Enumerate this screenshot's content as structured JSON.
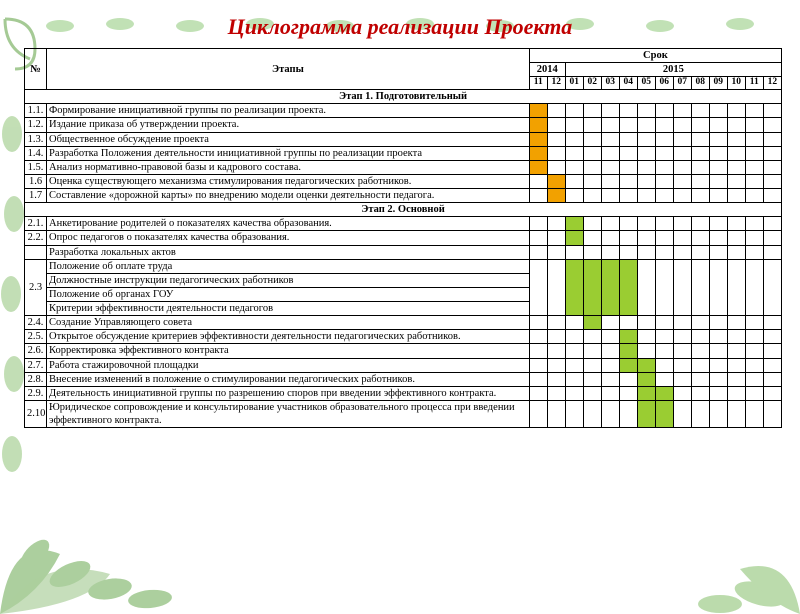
{
  "title": "Циклограмма реализации Проекта",
  "title_color": "#c00000",
  "title_fontsize": 22,
  "colors": {
    "orange": "#f2a100",
    "green": "#9acd32",
    "border": "#000000"
  },
  "decor": {
    "corner_swirl_color": "#6aa84f",
    "leaves_color": "#7ab85c",
    "top_border_leaf_color": "#8fc97a"
  },
  "header": {
    "num": "№",
    "task": "Этапы",
    "period": "Срок",
    "years": [
      "2014",
      "2015"
    ],
    "months": [
      "11",
      "12",
      "01",
      "02",
      "03",
      "04",
      "05",
      "06",
      "07",
      "08",
      "09",
      "10",
      "11",
      "12"
    ]
  },
  "sections": [
    {
      "title": "Этап 1. Подготовительный",
      "rows": [
        {
          "num": "1.1.",
          "task": "Формирование инициативной группы по реализации проекта.",
          "fill": {
            "color": "orange",
            "cells": [
              0
            ]
          }
        },
        {
          "num": "1.2.",
          "task": "Издание приказа об утверждении проекта.",
          "fill": {
            "color": "orange",
            "cells": [
              0
            ]
          }
        },
        {
          "num": "1.3.",
          "task": "Общественное обсуждение проекта",
          "fill": {
            "color": "orange",
            "cells": [
              0
            ]
          }
        },
        {
          "num": "1.4.",
          "task": "Разработка Положения деятельности инициативной группы по реализации проекта",
          "fill": {
            "color": "orange",
            "cells": [
              0
            ]
          }
        },
        {
          "num": "1.5.",
          "task": "Анализ нормативно-правовой базы и кадрового состава.",
          "fill": {
            "color": "orange",
            "cells": [
              0
            ]
          }
        },
        {
          "num": "1.6",
          "task": "Оценка существующего механизма стимулирования педагогических работников.",
          "fill": {
            "color": "orange",
            "cells": [
              1
            ]
          }
        },
        {
          "num": "1.7",
          "task": "Составление «дорожной карты» по внедрению модели оценки деятельности педагога.",
          "fill": {
            "color": "orange",
            "cells": [
              1
            ]
          }
        }
      ]
    },
    {
      "title": "Этап 2. Основной",
      "rows": [
        {
          "num": "2.1.",
          "task": "Анкетирование родителей о показателях качества образования.",
          "fill": {
            "color": "green",
            "cells": [
              2
            ]
          }
        },
        {
          "num": "2.2.",
          "task": "Опрос педагогов о показателях качества образования.",
          "fill": {
            "color": "green",
            "cells": [
              2
            ]
          }
        },
        {
          "num": "",
          "task": "Разработка локальных актов",
          "fill": null
        },
        {
          "num": "2.3",
          "task": "Положение об оплате труда\nДолжностные инструкции педагогических работников\nПоложение об органах ГОУ\nКритерии эффективности деятельности педагогов",
          "fill": {
            "color": "green",
            "cells": [
              2,
              3,
              4,
              5
            ]
          },
          "cell_rowspan": 4
        },
        {
          "num": "2.4.",
          "task": "Создание Управляющего совета",
          "fill": {
            "color": "green",
            "cells": [
              3
            ]
          }
        },
        {
          "num": "2.5.",
          "task": "Открытое обсуждение критериев эффективности деятельности педагогических работников.",
          "fill": {
            "color": "green",
            "cells": [
              5
            ]
          }
        },
        {
          "num": "2.6.",
          "task": "Корректировка эффективного контракта",
          "fill": {
            "color": "green",
            "cells": [
              5
            ]
          }
        },
        {
          "num": "2.7.",
          "task": "Работа стажировочной площадки",
          "fill": {
            "color": "green",
            "cells": [
              5,
              6
            ]
          }
        },
        {
          "num": "2.8.",
          "task": "Внесение изменений в положение о стимулировании педагогических работников.",
          "fill": {
            "color": "green",
            "cells": [
              6
            ]
          }
        },
        {
          "num": "2.9.",
          "task": "Деятельность инициативной группы по разрешению споров при введении эффективного контракта.",
          "fill": {
            "color": "green",
            "cells": [
              6,
              7
            ]
          }
        },
        {
          "num": "2.10",
          "task": "Юридическое сопровождение и консультирование участников образовательного процесса при введении эффективного контракта.",
          "fill": {
            "color": "green",
            "cells": [
              6,
              7
            ]
          }
        }
      ]
    }
  ]
}
